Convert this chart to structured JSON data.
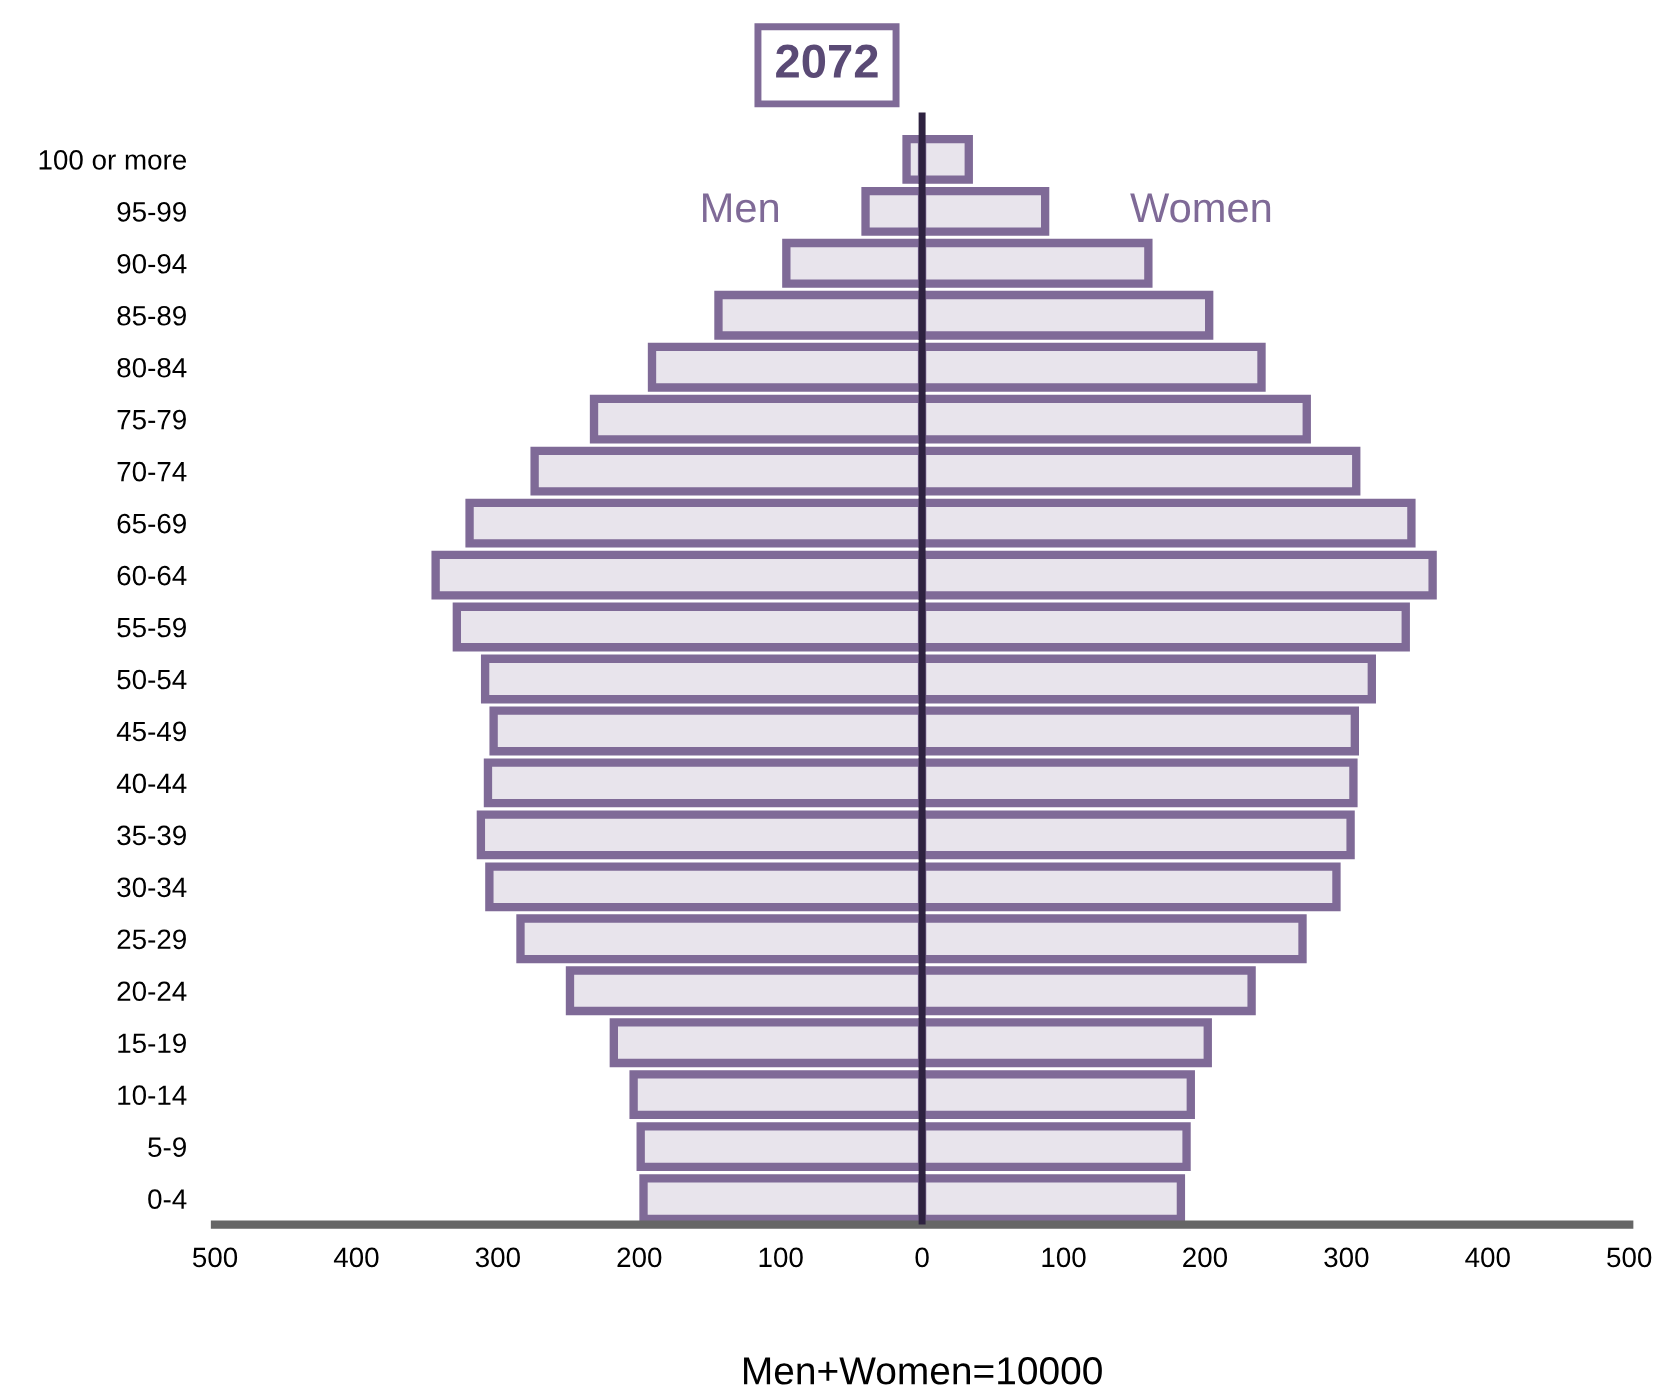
{
  "chart_data": {
    "type": "bar",
    "orientation": "horizontal",
    "stacked": true,
    "title": "2072",
    "xlabel": "Men+Women=10000",
    "categories": [
      "100 or more",
      "95-99",
      "90-94",
      "85-89",
      "80-84",
      "75-79",
      "70-74",
      "65-69",
      "60-64",
      "55-59",
      "50-54",
      "45-49",
      "40-44",
      "35-39",
      "30-34",
      "25-29",
      "20-24",
      "15-19",
      "10-14",
      "5-9",
      "0-4"
    ],
    "series": [
      {
        "name": "Men",
        "color": "#7f6a97",
        "values": [
          -11,
          -40,
          -96,
          -144,
          -191,
          -232,
          -274,
          -320,
          -344,
          -329,
          -309,
          -303,
          -307,
          -312,
          -306,
          -284,
          -249,
          -218,
          -204,
          -199,
          -197
        ]
      },
      {
        "name": "Women",
        "color": "#7f6a97",
        "values": [
          33,
          87,
          160,
          203,
          240,
          272,
          307,
          346,
          361,
          342,
          318,
          306,
          305,
          303,
          293,
          269,
          233,
          202,
          190,
          187,
          183
        ]
      }
    ],
    "xlim": [
      -500,
      500
    ],
    "xticks": [
      {
        "value": -500,
        "label": "500"
      },
      {
        "value": -400,
        "label": "400"
      },
      {
        "value": -300,
        "label": "300"
      },
      {
        "value": -200,
        "label": "200"
      },
      {
        "value": -100,
        "label": "100"
      },
      0,
      100,
      200,
      300,
      400,
      500
    ],
    "ref_lines": [
      {
        "axis": "x",
        "value": 0,
        "color": "#2e2240"
      }
    ],
    "grid": false,
    "legend": false
  }
}
